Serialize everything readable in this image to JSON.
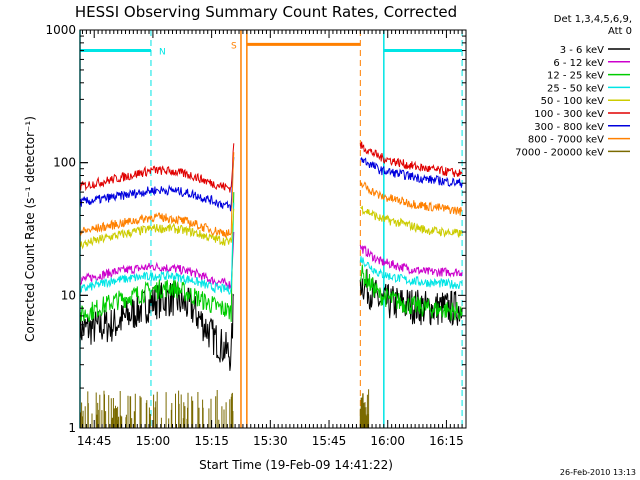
{
  "chart_data": {
    "type": "line",
    "title": "HESSI Observing Summary Count Rates, Corrected",
    "xlabel": "Start Time (19-Feb-09 14:41:22)",
    "ylabel": "Corrected Count Rate (s⁻¹ detector⁻¹)",
    "yscale": "log",
    "ylim": [
      1,
      1000
    ],
    "xlim": [
      "14:41:22",
      "16:20:00"
    ],
    "y_ticks": [
      "1",
      "10",
      "100",
      "1000"
    ],
    "x_ticks": [
      "14:45",
      "15:00",
      "15:15",
      "15:30",
      "15:45",
      "16:00",
      "16:15"
    ],
    "legend_position": "top-right",
    "legend_header": [
      "Det 1,3,4,5,6,9,",
      "Att 0"
    ],
    "footer_date": "26-Feb-2010 13:13",
    "gaps": [
      [
        "15:20:40",
        "15:53:00"
      ]
    ],
    "series": [
      {
        "name": "3 - 6 keV",
        "color": "#000000",
        "x": [
          "14:41:22",
          "14:50:00",
          "15:00:00",
          "15:05:00",
          "15:10:00",
          "15:15:00",
          "15:20:00",
          "15:20:40",
          "15:53:00",
          "15:58:00",
          "16:05:00",
          "16:10:00",
          "16:19:00"
        ],
        "y": [
          5.5,
          6,
          9,
          9.5,
          8,
          5,
          3.5,
          10,
          13,
          9,
          8.5,
          8,
          8
        ]
      },
      {
        "name": "6 - 12 keV",
        "color": "#cc00cc",
        "x": [
          "14:41:22",
          "14:50:00",
          "15:00:00",
          "15:05:00",
          "15:10:00",
          "15:15:00",
          "15:20:00",
          "15:20:40",
          "15:53:00",
          "15:58:00",
          "16:05:00",
          "16:10:00",
          "16:19:00"
        ],
        "y": [
          13,
          15,
          16.5,
          16,
          15,
          13,
          12,
          30,
          23,
          18,
          16,
          15,
          15
        ]
      },
      {
        "name": "12 - 25 keV",
        "color": "#00cc00",
        "x": [
          "14:41:22",
          "14:50:00",
          "15:00:00",
          "15:05:00",
          "15:10:00",
          "15:15:00",
          "15:20:00",
          "15:20:40",
          "15:53:00",
          "15:58:00",
          "16:05:00",
          "16:10:00",
          "16:19:00"
        ],
        "y": [
          7,
          9,
          11,
          11.5,
          10,
          8.5,
          7.5,
          60,
          15,
          10,
          8.5,
          8,
          7.5
        ]
      },
      {
        "name": "25 - 50 keV",
        "color": "#00e5e5",
        "x": [
          "14:41:22",
          "14:50:00",
          "15:00:00",
          "15:05:00",
          "15:10:00",
          "15:15:00",
          "15:20:00",
          "15:20:40",
          "15:53:00",
          "15:58:00",
          "16:05:00",
          "16:10:00",
          "16:19:00"
        ],
        "y": [
          11,
          13,
          14,
          14,
          13,
          11.5,
          11,
          50,
          19,
          14.5,
          13,
          12.5,
          12
        ]
      },
      {
        "name": "50 - 100 keV",
        "color": "#cccc00",
        "x": [
          "14:41:22",
          "14:50:00",
          "15:00:00",
          "15:05:00",
          "15:10:00",
          "15:15:00",
          "15:20:00",
          "15:20:40",
          "15:53:00",
          "15:58:00",
          "16:05:00",
          "16:10:00",
          "16:19:00"
        ],
        "y": [
          24,
          28,
          32,
          32,
          30,
          27,
          25,
          45,
          46,
          38,
          34,
          31,
          29
        ]
      },
      {
        "name": "100 - 300 keV",
        "color": "#e00000",
        "x": [
          "14:41:22",
          "14:50:00",
          "15:00:00",
          "15:05:00",
          "15:10:00",
          "15:15:00",
          "15:20:00",
          "15:20:40",
          "15:53:00",
          "15:58:00",
          "16:05:00",
          "16:10:00",
          "16:19:00"
        ],
        "y": [
          66,
          75,
          88,
          86,
          80,
          70,
          64,
          140,
          135,
          110,
          96,
          90,
          82
        ]
      },
      {
        "name": "300 - 800 keV",
        "color": "#0000dd",
        "x": [
          "14:41:22",
          "14:50:00",
          "15:00:00",
          "15:05:00",
          "15:10:00",
          "15:15:00",
          "15:20:00",
          "15:20:40",
          "15:53:00",
          "15:58:00",
          "16:05:00",
          "16:10:00",
          "16:19:00"
        ],
        "y": [
          50,
          55,
          62,
          62,
          58,
          52,
          46,
          110,
          108,
          88,
          80,
          75,
          70
        ]
      },
      {
        "name": "800 - 7000 keV",
        "color": "#ff8000",
        "x": [
          "14:41:22",
          "14:50:00",
          "15:00:00",
          "15:05:00",
          "15:10:00",
          "15:15:00",
          "15:20:00",
          "15:20:40",
          "15:53:00",
          "15:58:00",
          "16:05:00",
          "16:10:00",
          "16:19:00"
        ],
        "y": [
          30,
          34,
          39,
          38,
          35,
          31,
          29,
          120,
          70,
          56,
          50,
          47,
          43
        ]
      },
      {
        "name": "7000 - 20000 keV",
        "color": "#7a6a00",
        "x": [
          "14:41:22",
          "14:50:00",
          "15:00:00",
          "15:05:00",
          "15:10:00",
          "15:15:00",
          "15:20:00",
          "15:53:00",
          "15:55:00"
        ],
        "y": [
          1,
          1,
          1,
          1,
          1,
          1,
          1,
          1,
          1
        ]
      }
    ],
    "annotations": [
      {
        "label": "N",
        "color": "#00e5e5",
        "x": "14:59:30",
        "start": "14:41:22",
        "end": "14:59:30",
        "bar_y": 700
      },
      {
        "label": "",
        "color": "#00e5e5",
        "x": "15:59:00",
        "start": "15:59:00",
        "end": "16:19:00",
        "bar_y": 700
      },
      {
        "label": "S",
        "color": "#ff8000",
        "x": "15:22:30",
        "start": "15:24:00",
        "end": "15:53:00",
        "bar_y": 780
      }
    ],
    "solid_lines": [
      {
        "x": "14:41:22",
        "color": "#00e5e5"
      },
      {
        "x": "15:22:30",
        "color": "#ff8000"
      },
      {
        "x": "15:24:00",
        "color": "#ff8000"
      },
      {
        "x": "15:59:00",
        "color": "#00e5e5"
      }
    ],
    "dashed_lines": [
      {
        "x": "14:59:30",
        "color": "#00e5e5"
      },
      {
        "x": "15:53:00",
        "color": "#ff8000"
      },
      {
        "x": "16:19:00",
        "color": "#00e5e5"
      }
    ]
  }
}
